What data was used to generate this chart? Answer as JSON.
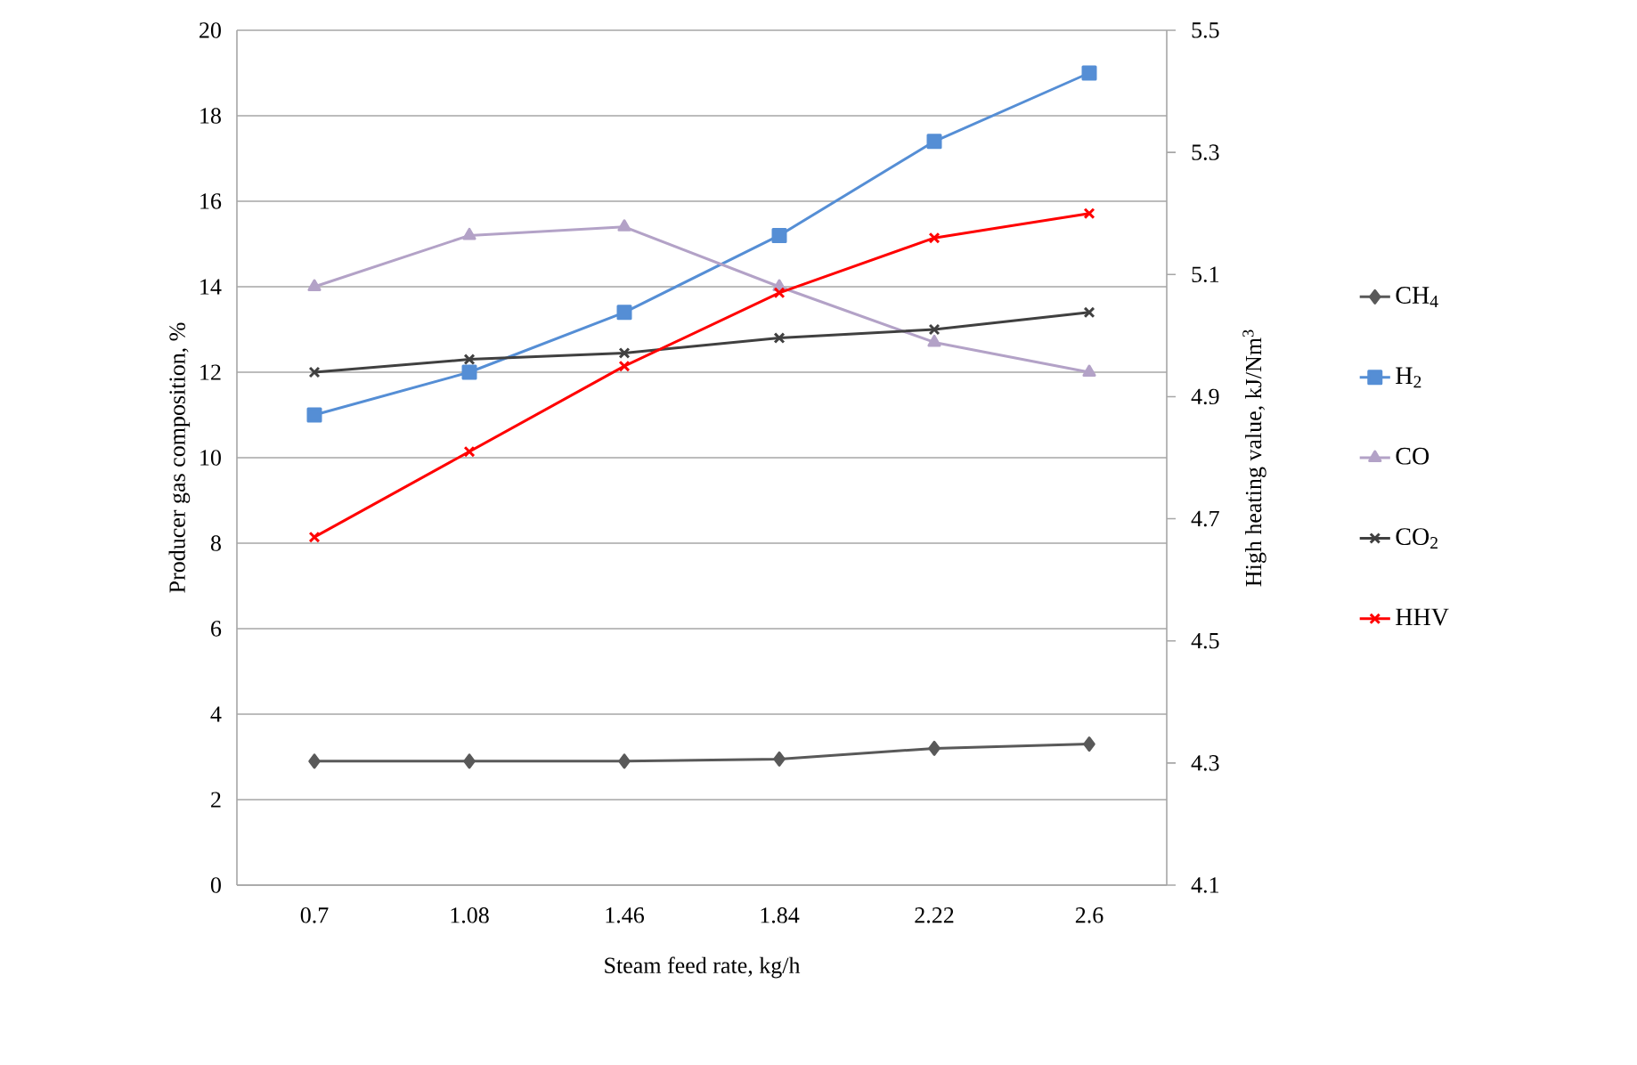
{
  "chart_data": {
    "type": "line",
    "categories": [
      "0.7",
      "1.08",
      "1.46",
      "1.84",
      "2.22",
      "2.6"
    ],
    "xlabel": "Steam feed rate, kg/h",
    "ylabel": "Producer gas composition, %",
    "y2label": "High heating value, kJ/Nm$^{3}$",
    "series": [
      {
        "name": "CH$_{4}$",
        "color": "#595959",
        "marker": "diamond",
        "values": [
          2.9,
          2.9,
          2.9,
          2.95,
          3.2,
          3.3
        ]
      },
      {
        "name": "H$_{2}$",
        "color": "#558ed5",
        "marker": "square",
        "values": [
          11.0,
          12.0,
          13.4,
          15.2,
          17.4,
          19.0
        ]
      },
      {
        "name": "CO",
        "color": "#b3a2c7",
        "marker": "triangle",
        "values": [
          14.0,
          15.2,
          15.4,
          14.0,
          12.7,
          12.0
        ]
      },
      {
        "name": "CO$_{2}$",
        "color": "#404040",
        "marker": "cross",
        "values": [
          12.0,
          12.3,
          12.45,
          12.8,
          13.0,
          13.4
        ]
      },
      {
        "name": "HHV",
        "color": "#ff0000",
        "marker": "cross",
        "axis": "y2",
        "values": [
          4.67,
          4.81,
          4.95,
          5.07,
          5.16,
          5.2
        ]
      }
    ],
    "ylim": [
      0,
      20
    ],
    "yticks": [
      0,
      2,
      4,
      6,
      8,
      10,
      12,
      14,
      16,
      18,
      20
    ],
    "y2lim": [
      4.1,
      5.5
    ],
    "y2ticks": [
      4.1,
      4.3,
      4.5,
      4.7,
      4.9,
      5.1,
      5.3,
      5.5
    ],
    "grid": "y",
    "legend": "right"
  }
}
